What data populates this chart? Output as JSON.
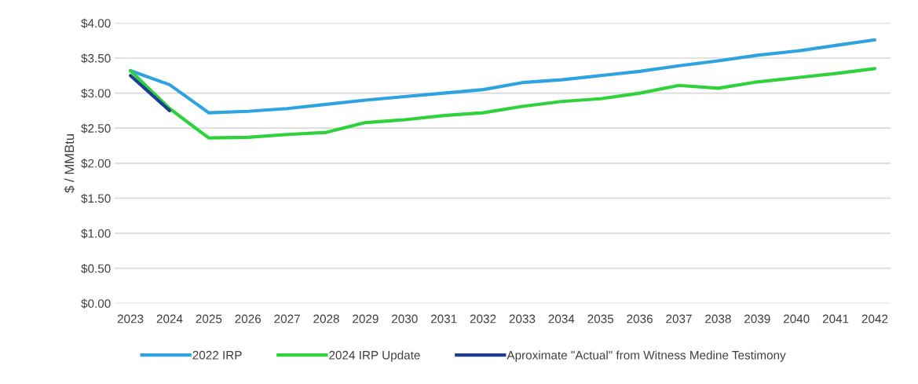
{
  "chart_data": {
    "type": "line",
    "ylabel": "$ / MMBtu",
    "categories": [
      "2023",
      "2024",
      "2025",
      "2026",
      "2027",
      "2028",
      "2029",
      "2030",
      "2031",
      "2032",
      "2033",
      "2034",
      "2035",
      "2036",
      "2037",
      "2038",
      "2039",
      "2040",
      "2041",
      "2042"
    ],
    "series": [
      {
        "name": "2022 IRP",
        "color": "#2ea3e0",
        "values": [
          3.32,
          3.12,
          2.72,
          2.74,
          2.78,
          2.84,
          2.9,
          2.95,
          3.0,
          3.05,
          3.15,
          3.19,
          3.25,
          3.31,
          3.39,
          3.46,
          3.54,
          3.6,
          3.68,
          3.76
        ]
      },
      {
        "name": "2024 IRP Update",
        "color": "#2fd23c",
        "values": [
          3.32,
          2.78,
          2.36,
          2.37,
          2.41,
          2.44,
          2.58,
          2.62,
          2.68,
          2.72,
          2.81,
          2.88,
          2.92,
          3.0,
          3.11,
          3.07,
          3.16,
          3.22,
          3.28,
          3.35
        ]
      },
      {
        "name": "Aproximate \"Actual\" from Witness Medine Testimony",
        "color": "#1d3f8f",
        "values": [
          3.25,
          2.75,
          null,
          null,
          null,
          null,
          null,
          null,
          null,
          null,
          null,
          null,
          null,
          null,
          null,
          null,
          null,
          null,
          null,
          null
        ]
      }
    ],
    "ylim": [
      0,
      4
    ],
    "yticks": [
      {
        "value": 0,
        "label": "$0.00"
      },
      {
        "value": 0.5,
        "label": "$0.50"
      },
      {
        "value": 1,
        "label": "$1.00"
      },
      {
        "value": 1.5,
        "label": "$1.50"
      },
      {
        "value": 2,
        "label": "$2.00"
      },
      {
        "value": 2.5,
        "label": "$2.50"
      },
      {
        "value": 3,
        "label": "$3.00"
      },
      {
        "value": 3.5,
        "label": "$3.50"
      },
      {
        "value": 4,
        "label": "$4.00"
      }
    ],
    "grid": "y",
    "legend": "bottom",
    "marker": "none",
    "line_style": "solid"
  }
}
